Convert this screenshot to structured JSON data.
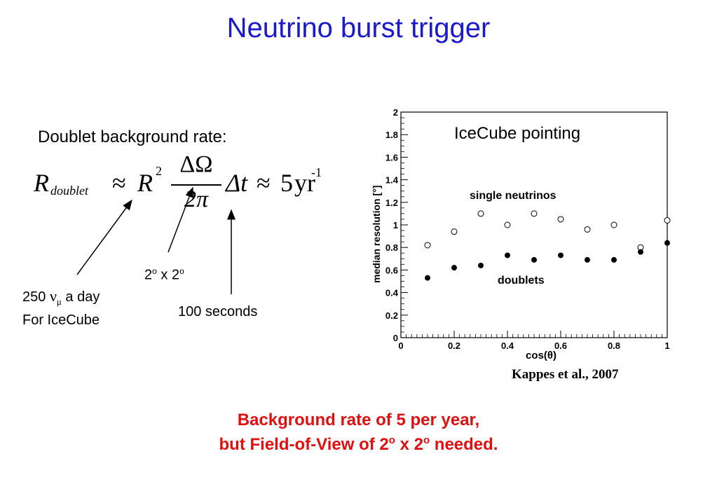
{
  "slide": {
    "title": "Neutrino burst trigger",
    "doublet_heading": "Doublet background rate:",
    "formula": {
      "R": "R",
      "R_subscript": "doublet",
      "approx1": "≈",
      "R2": "R",
      "R2_exp": "2",
      "numerator": "ΔΩ",
      "denominator": "2π",
      "dt": "Δt",
      "approx2": "≈",
      "five": "5",
      "yr": "yr",
      "yr_exp": "-1"
    },
    "annotations": {
      "nu_rate_prefix": "250 ",
      "nu_symbol": "ν",
      "nu_sub": "μ",
      "nu_rate_suffix": " a day",
      "nu_rate_line2": "For IceCube",
      "fov_part1": "2",
      "fov_sup1": "o",
      "fov_part2": " x 2",
      "fov_sup2": "o",
      "time_window": "100 seconds"
    },
    "conclusion": {
      "line1": "Background rate of 5 per year,",
      "line2_part1": "but Field-of-View of 2",
      "line2_sup1": "o",
      "line2_part2": " x 2",
      "line2_sup2": "o",
      "line2_part3": " needed."
    },
    "citation": "Kappes et al., 2007"
  },
  "chart_data": {
    "type": "scatter",
    "title": "IceCube pointing",
    "xlabel": "cos(θ)",
    "ylabel": "median resolution [°]",
    "xlim": [
      0,
      1
    ],
    "ylim": [
      0,
      2
    ],
    "x_ticks": [
      "0",
      "0.2",
      "0.4",
      "0.6",
      "0.8",
      "1"
    ],
    "y_ticks": [
      "0",
      "0.2",
      "0.4",
      "0.6",
      "0.8",
      "1",
      "1.2",
      "1.4",
      "1.6",
      "1.8",
      "2"
    ],
    "grid": false,
    "series": [
      {
        "name": "single neutrinos",
        "marker": "open-circle",
        "x": [
          0.1,
          0.2,
          0.3,
          0.4,
          0.5,
          0.6,
          0.7,
          0.8,
          0.9,
          1.0
        ],
        "y": [
          0.82,
          0.94,
          1.1,
          1.0,
          1.1,
          1.05,
          0.96,
          1.0,
          0.8,
          1.04
        ]
      },
      {
        "name": "doublets",
        "marker": "filled-circle",
        "x": [
          0.1,
          0.2,
          0.3,
          0.4,
          0.5,
          0.6,
          0.7,
          0.8,
          0.9,
          1.0
        ],
        "y": [
          0.53,
          0.62,
          0.64,
          0.73,
          0.69,
          0.73,
          0.69,
          0.69,
          0.76,
          0.84
        ]
      }
    ]
  }
}
